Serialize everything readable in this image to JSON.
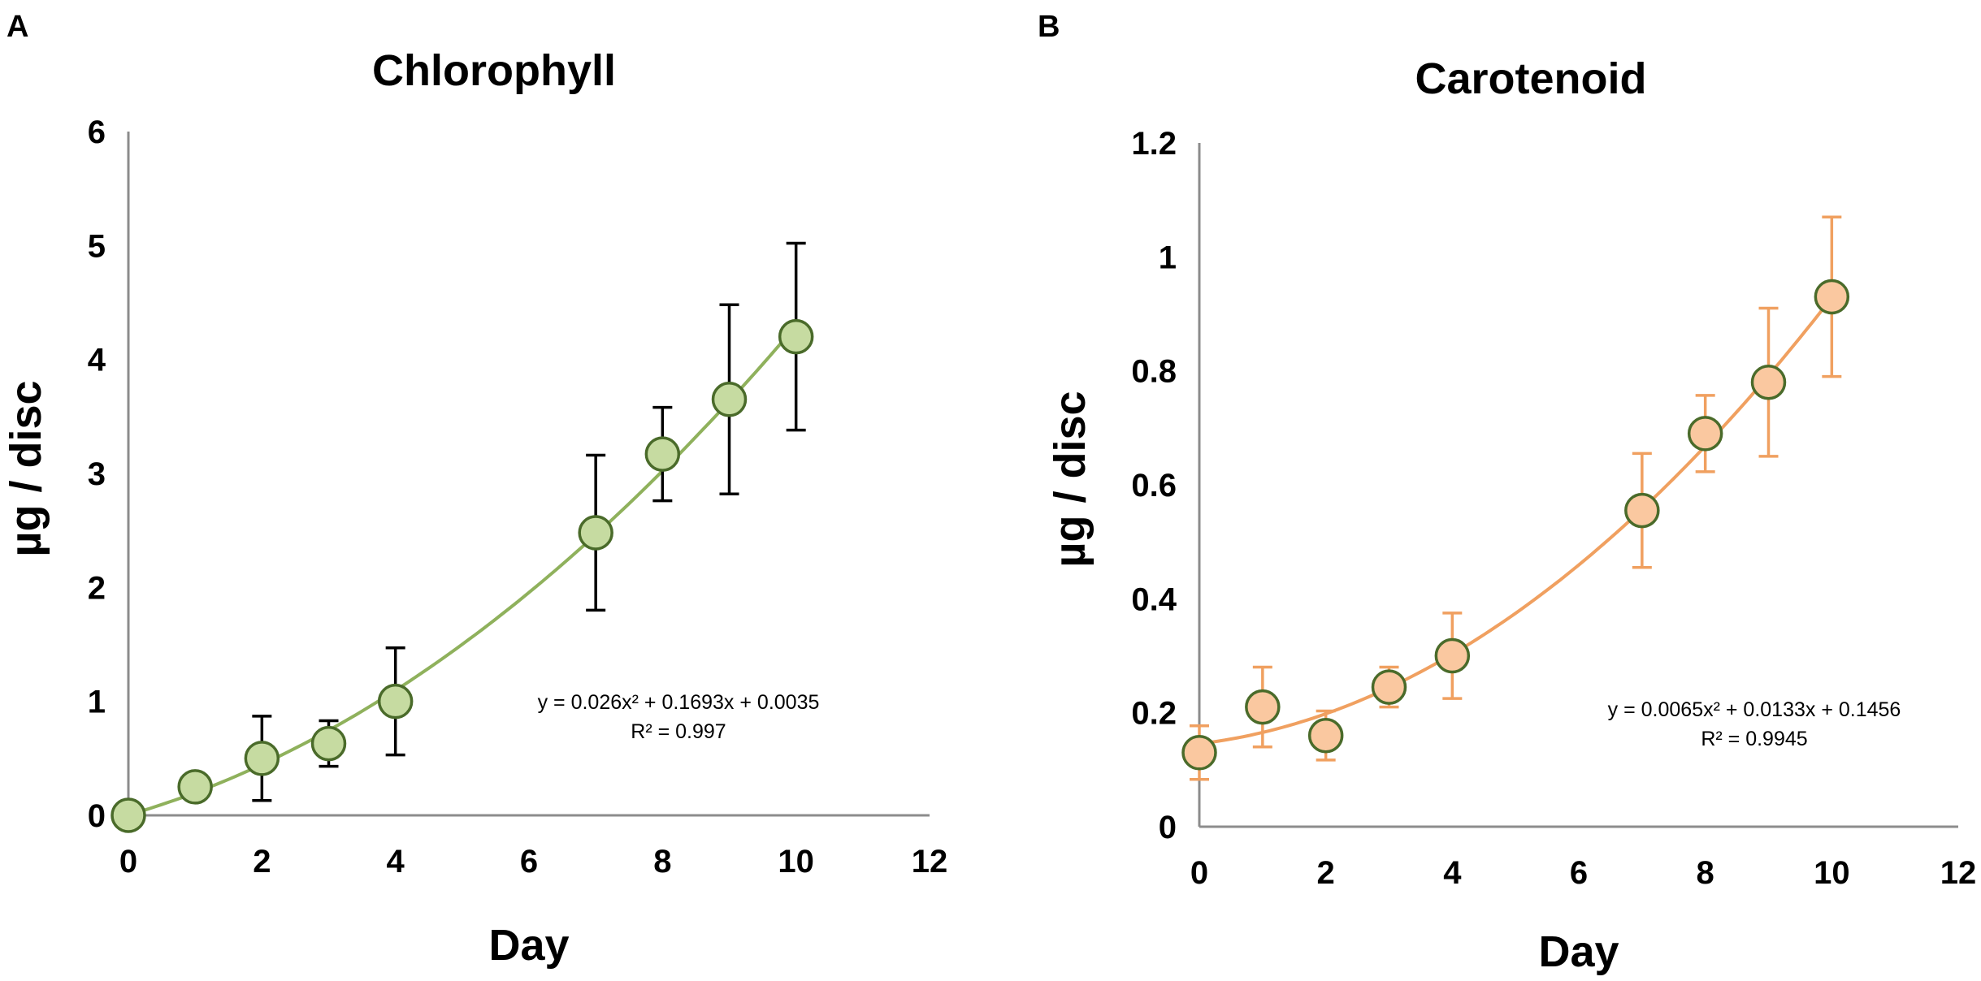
{
  "panel_labels": [
    "A",
    "B"
  ],
  "chart_data": [
    {
      "type": "scatter",
      "title": "Chlorophyll",
      "xlabel": "Day",
      "ylabel": "µg / disc",
      "xlim": [
        0,
        12
      ],
      "ylim": [
        0,
        6
      ],
      "xticks": [
        "0",
        "2",
        "4",
        "6",
        "8",
        "10",
        "12"
      ],
      "yticks": [
        "0",
        "1",
        "2",
        "3",
        "4",
        "5",
        "6"
      ],
      "grid": false,
      "series": [
        {
          "name": "Chlorophyll",
          "x": [
            0,
            1,
            2,
            3,
            4,
            7,
            8,
            9,
            10
          ],
          "y": [
            0.0,
            0.25,
            0.5,
            0.63,
            1.0,
            2.48,
            3.17,
            3.65,
            4.2
          ],
          "error": [
            0.0,
            0.0,
            0.37,
            0.2,
            0.47,
            0.68,
            0.41,
            0.83,
            0.82
          ]
        }
      ],
      "trendline": {
        "type": "polynomial",
        "coefficients": [
          0.026,
          0.1693,
          0.0035
        ],
        "equation": "y = 0.026x² + 0.1693x + 0.0035",
        "r2": "R² = 0.997"
      },
      "colors": {
        "marker_fill": "#c6dba1",
        "marker_stroke": "#4a6b2a",
        "trend": "#8fb15c",
        "error_bar": "#000000"
      }
    },
    {
      "type": "scatter",
      "title": "Carotenoid",
      "xlabel": "Day",
      "ylabel": "µg / disc",
      "xlim": [
        0,
        12
      ],
      "ylim": [
        0,
        1.2
      ],
      "xticks": [
        "0",
        "2",
        "4",
        "6",
        "8",
        "10",
        "12"
      ],
      "yticks": [
        "0",
        "0.2",
        "0.4",
        "0.6",
        "0.8",
        "1",
        "1.2"
      ],
      "grid": false,
      "series": [
        {
          "name": "Carotenoid",
          "x": [
            0,
            1,
            2,
            3,
            4,
            7,
            8,
            9,
            10
          ],
          "y": [
            0.13,
            0.21,
            0.16,
            0.245,
            0.3,
            0.555,
            0.69,
            0.78,
            0.93
          ],
          "error": [
            0.047,
            0.07,
            0.043,
            0.035,
            0.075,
            0.1,
            0.067,
            0.13,
            0.14
          ]
        }
      ],
      "trendline": {
        "type": "polynomial",
        "coefficients": [
          0.0065,
          0.0133,
          0.1456
        ],
        "equation": "y = 0.0065x² + 0.0133x + 0.1456",
        "r2": "R² = 0.9945"
      },
      "colors": {
        "marker_fill": "#fac8a0",
        "marker_stroke": "#4a6b2a",
        "trend": "#f0a060",
        "error_bar": "#f0a060"
      }
    }
  ]
}
